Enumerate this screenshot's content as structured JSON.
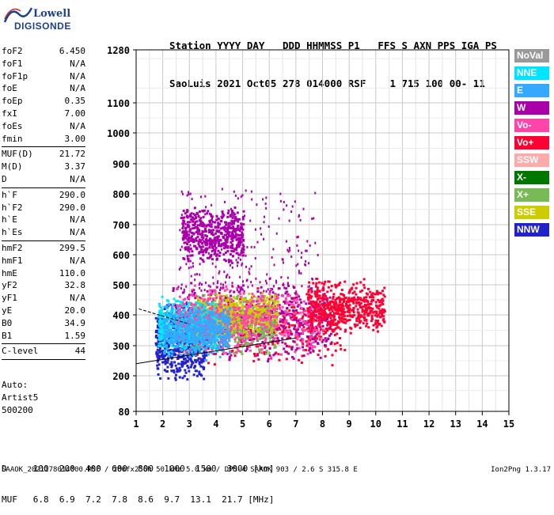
{
  "logo": {
    "line1": "Lowell",
    "line2": "DIGISONDE"
  },
  "header": {
    "line1": "Station YYYY DAY   DDD HHMMSS P1   FFS S AXN PPS IGA PS",
    "line2": "SaoLuis 2021 Oct05 278 014000 RSF    1 715 100 00- 11"
  },
  "params": [
    {
      "label": "foF2",
      "value": "6.450"
    },
    {
      "label": "foF1",
      "value": "N/A"
    },
    {
      "label": "foF1p",
      "value": "N/A"
    },
    {
      "label": "foE",
      "value": "N/A"
    },
    {
      "label": "foEp",
      "value": "0.35"
    },
    {
      "label": "fxI",
      "value": "7.00"
    },
    {
      "label": "foEs",
      "value": "N/A"
    },
    {
      "label": "fmin",
      "value": "3.00"
    },
    {
      "sep": true
    },
    {
      "label": "MUF(D)",
      "value": "21.72"
    },
    {
      "label": "M(D)",
      "value": "3.37"
    },
    {
      "label": "D",
      "value": "N/A"
    },
    {
      "sep": true
    },
    {
      "label": "h`F",
      "value": "290.0"
    },
    {
      "label": "h`F2",
      "value": "290.0"
    },
    {
      "label": "h`E",
      "value": "N/A"
    },
    {
      "label": "h`Es",
      "value": "N/A"
    },
    {
      "sep": true
    },
    {
      "label": "hmF2",
      "value": "299.5"
    },
    {
      "label": "hmF1",
      "value": "N/A"
    },
    {
      "label": "hmE",
      "value": "110.0"
    },
    {
      "label": "yF2",
      "value": "32.8"
    },
    {
      "label": "yF1",
      "value": "N/A"
    },
    {
      "label": "yE",
      "value": "20.0"
    },
    {
      "label": "B0",
      "value": "34.9"
    },
    {
      "label": "B1",
      "value": "1.59"
    },
    {
      "sep": true
    },
    {
      "label": "C-level",
      "value": "44"
    },
    {
      "sep": true
    }
  ],
  "auto": [
    "Auto:",
    "Artist5",
    "500200"
  ],
  "bottom": {
    "d_line": "D     100  200  400  600  800  1000  1500  3000 [km]",
    "muf_line": "MUF   6.8  6.9  7.2  7.8  8.6  9.7  13.1  21.7 [MHz]"
  },
  "footer": {
    "left": "SAAOK_2021278014000.RSF / 280fx256h 50 kHz 5.0 km / DPS-4 SAAOK 903 / 2.6 S 315.8 E",
    "right": "Ion2Png 1.3.17"
  },
  "legend": [
    {
      "label": "NoVal",
      "color": "#999999"
    },
    {
      "label": "NNE",
      "color": "#00e5ff"
    },
    {
      "label": "E",
      "color": "#33aaff"
    },
    {
      "label": "W",
      "color": "#aa00aa"
    },
    {
      "label": "Vo-",
      "color": "#ff44aa"
    },
    {
      "label": "Vo+",
      "color": "#ff0033"
    },
    {
      "label": "SSW",
      "color": "#ffaaaa"
    },
    {
      "label": "X-",
      "color": "#007700"
    },
    {
      "label": "X+",
      "color": "#77bb55"
    },
    {
      "label": "SSE",
      "color": "#cccc00"
    },
    {
      "label": "NNW",
      "color": "#2222cc"
    }
  ],
  "chart_data": {
    "type": "scatter",
    "x_ticks": [
      "1",
      "2",
      "3",
      "4",
      "5",
      "6",
      "7",
      "8",
      "9",
      "10",
      "11",
      "12",
      "13",
      "14",
      "15"
    ],
    "y_ticks": [
      "80",
      "200",
      "300",
      "400",
      "500",
      "600",
      "700",
      "800",
      "900",
      "1000",
      "1100",
      "1280"
    ],
    "xlim": [
      1,
      15
    ],
    "ylim": [
      80,
      1280
    ],
    "grid": true,
    "legend_position": "right",
    "clusters": [
      {
        "name": "Vo+",
        "color": "#ff0033",
        "fx": [
          2.5,
          8.8
        ],
        "h": [
          270,
          460
        ]
      },
      {
        "name": "W",
        "color": "#aa00aa",
        "fx": [
          2.2,
          8.3
        ],
        "h": [
          280,
          480
        ]
      },
      {
        "name": "NNW",
        "color": "#2222cc",
        "fx": [
          1.7,
          3.6
        ],
        "h": [
          215,
          410
        ]
      },
      {
        "name": "X+",
        "color": "#77bb55",
        "fx": [
          3.0,
          6.2
        ],
        "h": [
          300,
          450
        ]
      },
      {
        "name": "SSE",
        "color": "#cccc00",
        "fx": [
          3.2,
          6.3
        ],
        "h": [
          350,
          460
        ]
      },
      {
        "name": "NNE",
        "color": "#00e5ff",
        "fx": [
          1.8,
          4.0
        ],
        "h": [
          300,
          440
        ]
      },
      {
        "name": "Vo-",
        "color": "#ff44aa",
        "fx": [
          2.5,
          8.0
        ],
        "h": [
          300,
          480
        ]
      },
      {
        "name": "E",
        "color": "#33aaff",
        "fx": [
          2.0,
          4.5
        ],
        "h": [
          280,
          420
        ]
      },
      {
        "name": "W",
        "color": "#aa00aa",
        "fx": [
          2.7,
          5.0
        ],
        "h": [
          600,
          740
        ]
      },
      {
        "name": "W",
        "color": "#aa00aa",
        "fx": [
          2.5,
          7.8
        ],
        "h": [
          480,
          820
        ]
      },
      {
        "name": "Vo+",
        "color": "#ff0033",
        "fx": [
          7.4,
          10.3
        ],
        "h": [
          360,
          500
        ]
      }
    ],
    "trace_lines": [
      {
        "x": [
          1.0,
          7.0
        ],
        "y": [
          240,
          325
        ]
      },
      {
        "x": [
          1.1,
          3.0
        ],
        "y": [
          420,
          370
        ]
      }
    ]
  }
}
